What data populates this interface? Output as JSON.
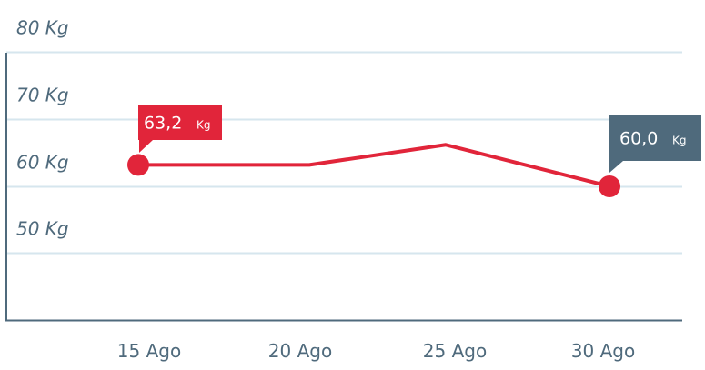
{
  "chart_data": {
    "type": "line",
    "x": [
      "15 Ago",
      "20 Ago",
      "25 Ago",
      "30 Ago"
    ],
    "y_ticks": [
      "50 Kg",
      "60 Kg",
      "70 Kg",
      "80 Kg"
    ],
    "ylim": [
      40,
      80
    ],
    "grid": true,
    "series": [
      {
        "values": [
          63.2,
          63.2,
          66.2,
          60.0
        ]
      }
    ],
    "annotations": [
      {
        "point_index": 0,
        "value": "63,2",
        "unit": "Kg"
      },
      {
        "point_index": 3,
        "value": "60,0",
        "unit": "Kg"
      }
    ],
    "colors": {
      "line": "#e1253a",
      "axis": "#4f6a7c",
      "grid": "#d6e6ee",
      "label": "#4f6a7c",
      "callout_first": "#e1253a",
      "callout_last": "#4f6a7c"
    }
  }
}
